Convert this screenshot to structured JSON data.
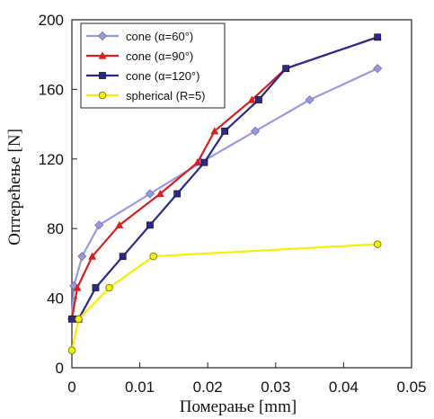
{
  "chart_data": {
    "type": "line",
    "title": "",
    "xlabel": "Померање [mm]",
    "ylabel": "Оптерећење [N]",
    "xlim": [
      0,
      0.05
    ],
    "ylim": [
      0,
      200
    ],
    "xticks": [
      0,
      0.01,
      0.02,
      0.03,
      0.04,
      0.05
    ],
    "xtick_labels": [
      "0",
      "0.01",
      "0.02",
      "0.03",
      "0.04",
      "0.05"
    ],
    "yticks": [
      0,
      40,
      80,
      120,
      160,
      200
    ],
    "ytick_labels": [
      "0",
      "40",
      "80",
      "120",
      "160",
      "200"
    ],
    "grid": false,
    "legend_position": "top-left",
    "series": [
      {
        "name": "cone (α=60°)",
        "color": "#9999dd",
        "marker": "diamond",
        "points": [
          [
            0,
            28
          ],
          [
            0.0003,
            47
          ],
          [
            0.0015,
            64
          ],
          [
            0.004,
            82
          ],
          [
            0.0115,
            100
          ],
          [
            0.019,
            118
          ],
          [
            0.027,
            136
          ],
          [
            0.035,
            154
          ],
          [
            0.045,
            172
          ]
        ]
      },
      {
        "name": "cone (α=90°)",
        "color": "#d42020",
        "marker": "triangle",
        "points": [
          [
            0,
            28
          ],
          [
            0.0008,
            46
          ],
          [
            0.003,
            64
          ],
          [
            0.007,
            82
          ],
          [
            0.013,
            100
          ],
          [
            0.0185,
            118
          ],
          [
            0.021,
            136
          ],
          [
            0.0265,
            154
          ],
          [
            0.0315,
            172
          ],
          [
            0.045,
            190
          ]
        ]
      },
      {
        "name": "cone (α=120°)",
        "color": "#2a2a8a",
        "marker": "square",
        "points": [
          [
            0,
            28
          ],
          [
            0.001,
            28
          ],
          [
            0.0035,
            46
          ],
          [
            0.0075,
            64
          ],
          [
            0.0115,
            82
          ],
          [
            0.0155,
            100
          ],
          [
            0.0195,
            118
          ],
          [
            0.0225,
            136
          ],
          [
            0.0275,
            154
          ],
          [
            0.0315,
            172
          ],
          [
            0.045,
            190
          ]
        ]
      },
      {
        "name": "spherical (R=5)",
        "color": "#f4f000",
        "marker": "circle",
        "points": [
          [
            0,
            10
          ],
          [
            0.001,
            28
          ],
          [
            0.0055,
            46
          ],
          [
            0.012,
            64
          ],
          [
            0.045,
            71
          ]
        ]
      }
    ]
  }
}
